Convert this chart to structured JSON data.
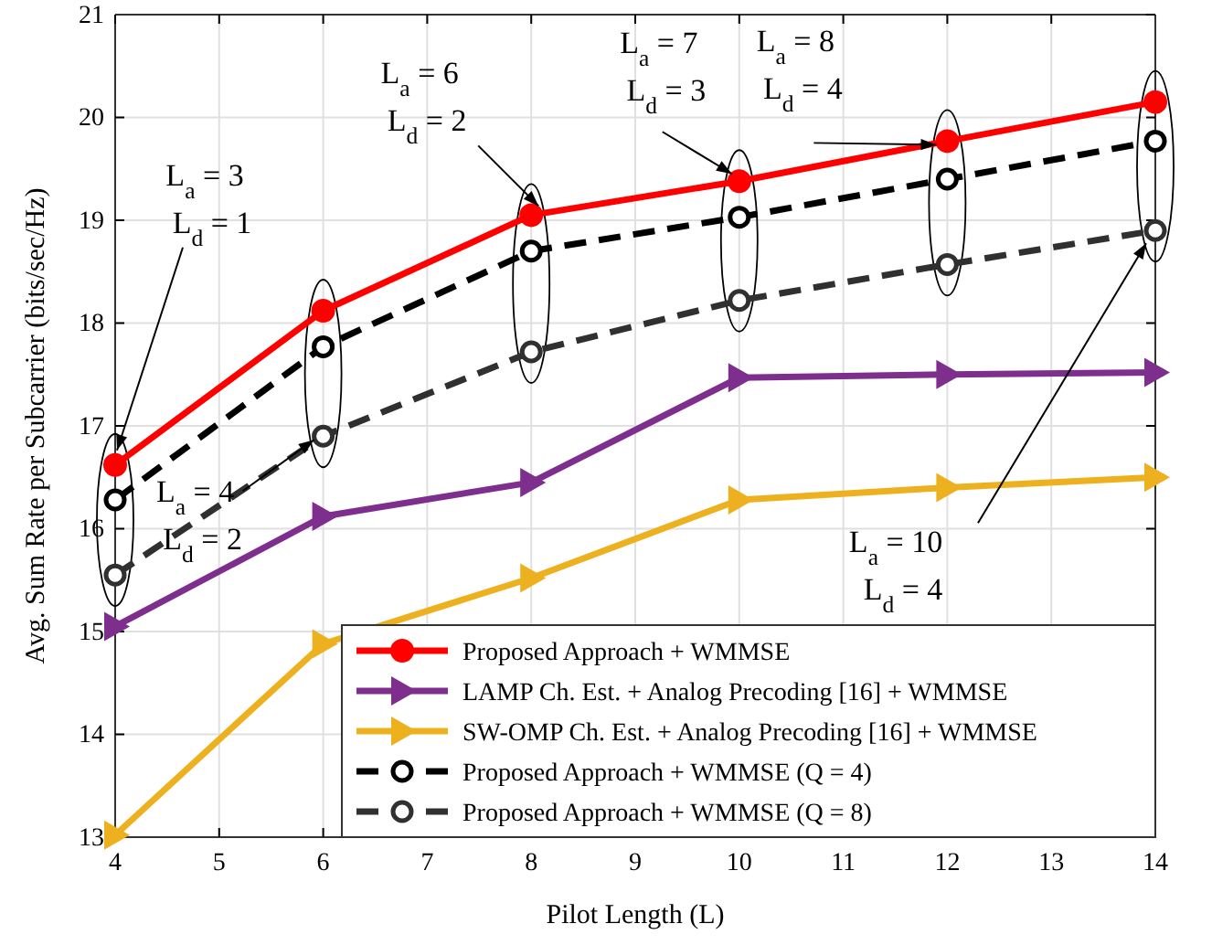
{
  "chart_data": {
    "type": "line",
    "xlabel": "Pilot Length (L)",
    "ylabel": "Avg. Sum Rate per Subcarrier (bits/sec/Hz)",
    "x": [
      4,
      6,
      8,
      10,
      12,
      14
    ],
    "xlim": [
      4,
      14
    ],
    "xticks": [
      4,
      5,
      6,
      7,
      8,
      9,
      10,
      11,
      12,
      13,
      14
    ],
    "ylim": [
      13,
      21
    ],
    "yticks": [
      13,
      14,
      15,
      16,
      17,
      18,
      19,
      20,
      21
    ],
    "grid": true,
    "legend": "bottom right",
    "series": [
      {
        "name": "Proposed Approach + WMMSE",
        "color": "#ff0000",
        "marker": "circle",
        "line_style": "solid",
        "values": [
          16.62,
          18.12,
          19.05,
          19.38,
          19.77,
          20.15
        ]
      },
      {
        "name": "LAMP Ch. Est. + Analog Precoding [16]  + WMMSE",
        "color": "#7e2f8e",
        "marker": "triangle",
        "line_style": "solid",
        "values": [
          15.05,
          16.12,
          16.45,
          17.47,
          17.5,
          17.52
        ]
      },
      {
        "name": "SW-OMP Ch. Est. + Analog Precoding [16] + WMMSE",
        "color": "#edb120",
        "marker": "triangle",
        "line_style": "solid",
        "values": [
          13.02,
          14.88,
          15.52,
          16.28,
          16.4,
          16.5
        ]
      },
      {
        "name": "Proposed Approach + WMMSE (Q = 4)",
        "color": "#000000",
        "marker": "circle",
        "line_style": "dashed",
        "values": [
          16.28,
          17.77,
          18.7,
          19.03,
          19.4,
          19.77
        ]
      },
      {
        "name": "Proposed Approach + WMMSE (Q = 8)",
        "color": "#303030",
        "marker": "circle",
        "line_style": "dashed",
        "values": [
          15.55,
          16.9,
          17.72,
          18.22,
          18.57,
          18.9
        ]
      }
    ],
    "annotations": [
      {
        "text": "L$_{a}$ = 3\nL$_{d}$ = 1",
        "x": 4,
        "y": 16.62
      },
      {
        "text": "L$_{a}$ = 6\nL$_{d}$ = 2",
        "x": 8,
        "y": 19.05
      },
      {
        "text": "L$_{a}$ = 7\nL$_{d}$ = 3",
        "x": 10,
        "y": 19.38
      },
      {
        "text": "L$_{a}$ = 8\nL$_{d}$ = 4",
        "x": 12,
        "y": 19.77
      },
      {
        "text": "L$_{a}$ = 4\nL$_{d}$ = 2",
        "x": 6,
        "y": 16.9
      },
      {
        "text": "L$_{a}$ = 10\nL$_{d}$ = 4",
        "x": 14,
        "y": 18.9
      }
    ]
  }
}
